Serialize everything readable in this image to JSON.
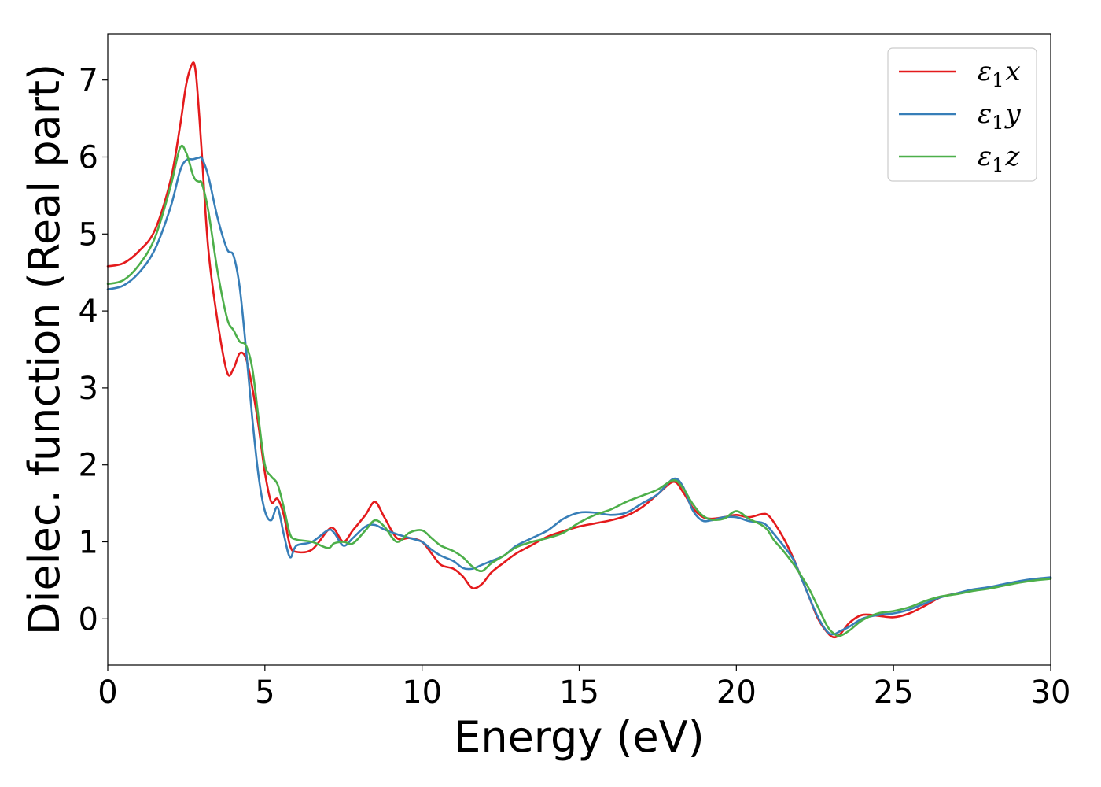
{
  "chart_data": {
    "type": "line",
    "title": "",
    "xlabel": "Energy (eV)",
    "ylabel": "Dielec. function (Real part)",
    "xlim": [
      0,
      30
    ],
    "ylim": [
      -0.6,
      7.6
    ],
    "xticks": [
      0,
      5,
      10,
      15,
      20,
      25,
      30
    ],
    "yticks": [
      0,
      1,
      2,
      3,
      4,
      5,
      6,
      7
    ],
    "grid": false,
    "legend_position": "top-right",
    "series": [
      {
        "name": "ε1x",
        "legend_main": "ε",
        "legend_sub": "1",
        "legend_suffix": "x",
        "color": "#e41a1c",
        "x": [
          0,
          0.5,
          1.0,
          1.5,
          2.0,
          2.3,
          2.5,
          2.7,
          2.8,
          2.9,
          3.0,
          3.2,
          3.5,
          3.8,
          4.0,
          4.2,
          4.4,
          4.6,
          4.8,
          5.0,
          5.2,
          5.4,
          5.6,
          5.8,
          6.0,
          6.5,
          7.0,
          7.2,
          7.5,
          7.8,
          8.2,
          8.5,
          8.8,
          9.2,
          9.6,
          10.0,
          10.3,
          10.6,
          11.0,
          11.3,
          11.6,
          11.9,
          12.2,
          12.6,
          13.0,
          13.5,
          14.0,
          14.5,
          15.0,
          15.5,
          16.0,
          16.5,
          17.0,
          17.5,
          18.0,
          18.3,
          18.6,
          18.9,
          19.2,
          19.6,
          20.0,
          20.4,
          20.8,
          21.0,
          21.2,
          21.5,
          21.8,
          22.0,
          22.3,
          22.6,
          22.9,
          23.1,
          23.3,
          23.6,
          24.0,
          24.5,
          25.0,
          25.5,
          26.0,
          26.5,
          27.0,
          27.5,
          28.0,
          28.5,
          29.0,
          29.5,
          30.0
        ],
        "y": [
          4.58,
          4.62,
          4.78,
          5.05,
          5.7,
          6.4,
          6.95,
          7.22,
          7.1,
          6.6,
          6.0,
          4.8,
          3.85,
          3.2,
          3.25,
          3.45,
          3.38,
          3.0,
          2.5,
          1.9,
          1.52,
          1.56,
          1.35,
          0.95,
          0.87,
          0.9,
          1.15,
          1.17,
          1.0,
          1.15,
          1.35,
          1.52,
          1.32,
          1.05,
          1.05,
          1.0,
          0.85,
          0.7,
          0.65,
          0.55,
          0.4,
          0.45,
          0.6,
          0.73,
          0.85,
          0.96,
          1.07,
          1.14,
          1.2,
          1.24,
          1.28,
          1.34,
          1.45,
          1.62,
          1.78,
          1.65,
          1.45,
          1.33,
          1.3,
          1.32,
          1.35,
          1.32,
          1.36,
          1.35,
          1.25,
          1.05,
          0.8,
          0.6,
          0.3,
          0.0,
          -0.18,
          -0.24,
          -0.2,
          -0.05,
          0.05,
          0.04,
          0.02,
          0.07,
          0.17,
          0.28,
          0.33,
          0.37,
          0.4,
          0.44,
          0.48,
          0.51,
          0.53
        ]
      },
      {
        "name": "ε1y",
        "legend_main": "ε",
        "legend_sub": "1",
        "legend_suffix": "y",
        "color": "#377eb8",
        "x": [
          0,
          0.5,
          1.0,
          1.5,
          2.0,
          2.3,
          2.5,
          2.7,
          2.8,
          2.9,
          3.0,
          3.2,
          3.5,
          3.8,
          4.0,
          4.2,
          4.4,
          4.6,
          4.8,
          5.0,
          5.2,
          5.4,
          5.6,
          5.8,
          6.0,
          6.5,
          7.0,
          7.2,
          7.5,
          7.8,
          8.2,
          8.5,
          8.8,
          9.2,
          9.6,
          10.0,
          10.3,
          10.6,
          11.0,
          11.3,
          11.6,
          11.9,
          12.2,
          12.6,
          13.0,
          13.5,
          14.0,
          14.5,
          15.0,
          15.5,
          16.0,
          16.5,
          17.0,
          17.5,
          18.0,
          18.3,
          18.6,
          18.9,
          19.2,
          19.6,
          20.0,
          20.4,
          20.8,
          21.0,
          21.2,
          21.5,
          21.8,
          22.0,
          22.3,
          22.6,
          22.9,
          23.1,
          23.3,
          23.6,
          24.0,
          24.5,
          25.0,
          25.5,
          26.0,
          26.5,
          27.0,
          27.5,
          28.0,
          28.5,
          29.0,
          29.5,
          30.0
        ],
        "y": [
          4.28,
          4.33,
          4.5,
          4.8,
          5.35,
          5.82,
          5.96,
          5.97,
          5.98,
          5.99,
          5.98,
          5.75,
          5.2,
          4.8,
          4.72,
          4.3,
          3.5,
          2.6,
          1.85,
          1.4,
          1.28,
          1.45,
          1.1,
          0.8,
          0.95,
          1.0,
          1.15,
          1.12,
          0.95,
          1.05,
          1.2,
          1.22,
          1.16,
          1.1,
          1.05,
          1.0,
          0.9,
          0.82,
          0.75,
          0.66,
          0.65,
          0.7,
          0.75,
          0.82,
          0.95,
          1.05,
          1.15,
          1.3,
          1.38,
          1.38,
          1.35,
          1.38,
          1.5,
          1.62,
          1.82,
          1.72,
          1.42,
          1.28,
          1.28,
          1.32,
          1.32,
          1.27,
          1.25,
          1.2,
          1.1,
          0.95,
          0.78,
          0.6,
          0.3,
          0.02,
          -0.17,
          -0.2,
          -0.16,
          -0.1,
          0.0,
          0.05,
          0.07,
          0.12,
          0.2,
          0.28,
          0.33,
          0.38,
          0.41,
          0.45,
          0.49,
          0.52,
          0.54
        ]
      },
      {
        "name": "ε1z",
        "legend_main": "ε",
        "legend_sub": "1",
        "legend_suffix": "z",
        "color": "#4daf4a",
        "x": [
          0,
          0.5,
          1.0,
          1.5,
          2.0,
          2.3,
          2.5,
          2.7,
          2.8,
          2.9,
          3.0,
          3.2,
          3.5,
          3.8,
          4.0,
          4.2,
          4.4,
          4.6,
          4.8,
          5.0,
          5.2,
          5.4,
          5.6,
          5.8,
          6.0,
          6.5,
          7.0,
          7.2,
          7.5,
          7.8,
          8.2,
          8.5,
          8.8,
          9.2,
          9.6,
          10.0,
          10.3,
          10.6,
          11.0,
          11.3,
          11.6,
          11.9,
          12.2,
          12.6,
          13.0,
          13.5,
          14.0,
          14.5,
          15.0,
          15.5,
          16.0,
          16.5,
          17.0,
          17.5,
          18.0,
          18.3,
          18.6,
          18.9,
          19.2,
          19.6,
          20.0,
          20.4,
          20.8,
          21.0,
          21.2,
          21.5,
          21.8,
          22.0,
          22.3,
          22.6,
          22.9,
          23.1,
          23.3,
          23.6,
          24.0,
          24.5,
          25.0,
          25.5,
          26.0,
          26.5,
          27.0,
          27.5,
          28.0,
          28.5,
          29.0,
          29.5,
          30.0
        ],
        "y": [
          4.35,
          4.4,
          4.6,
          4.95,
          5.62,
          6.12,
          6.05,
          5.78,
          5.7,
          5.68,
          5.65,
          5.3,
          4.5,
          3.9,
          3.75,
          3.6,
          3.55,
          3.25,
          2.6,
          2.0,
          1.85,
          1.75,
          1.45,
          1.1,
          1.03,
          1.0,
          0.92,
          0.98,
          1.0,
          0.98,
          1.15,
          1.28,
          1.2,
          1.0,
          1.12,
          1.15,
          1.05,
          0.95,
          0.88,
          0.8,
          0.68,
          0.62,
          0.72,
          0.82,
          0.93,
          1.0,
          1.05,
          1.12,
          1.25,
          1.35,
          1.42,
          1.52,
          1.6,
          1.68,
          1.8,
          1.7,
          1.5,
          1.35,
          1.29,
          1.3,
          1.4,
          1.3,
          1.22,
          1.15,
          1.02,
          0.88,
          0.72,
          0.6,
          0.4,
          0.15,
          -0.1,
          -0.19,
          -0.22,
          -0.15,
          -0.02,
          0.07,
          0.1,
          0.15,
          0.23,
          0.29,
          0.32,
          0.36,
          0.39,
          0.43,
          0.47,
          0.5,
          0.52
        ]
      }
    ]
  }
}
